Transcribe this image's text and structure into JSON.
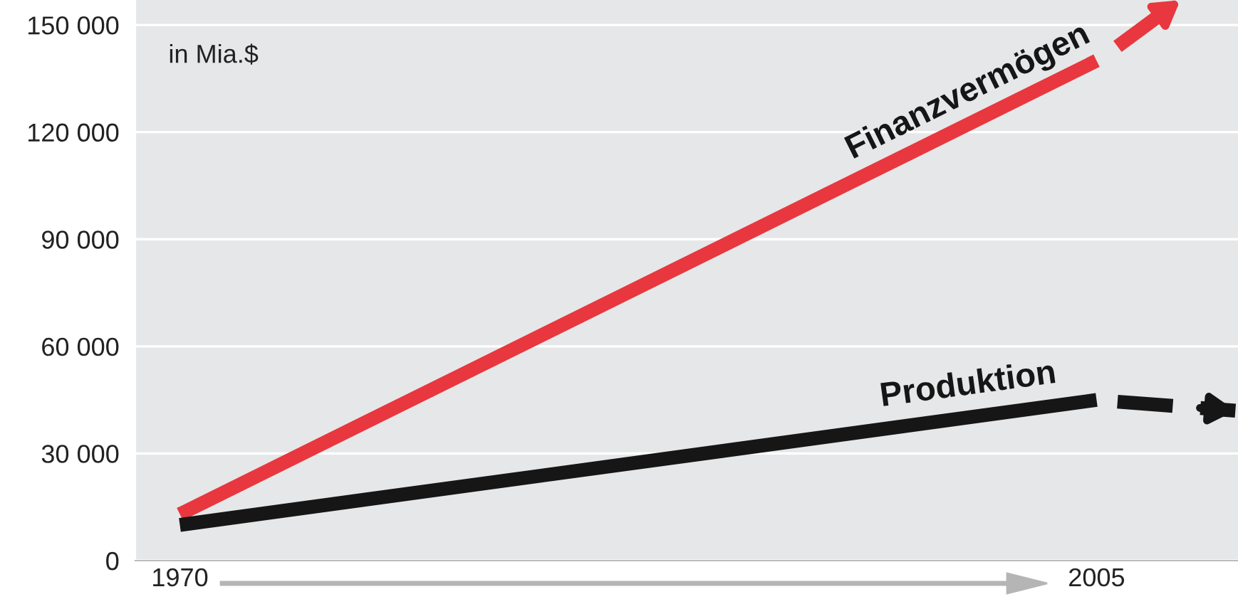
{
  "chart_data": {
    "type": "line",
    "x": [
      1970,
      2005
    ],
    "series": [
      {
        "name": "Finanzvermögen",
        "color": "#e8373e",
        "values": [
          13000,
          140000
        ]
      },
      {
        "name": "Produktion",
        "color": "#161616",
        "values": [
          10000,
          45000
        ]
      },
      {
        "color": "#e8373e",
        "x": [
          2005.8,
          2008.2
        ],
        "values": [
          144000,
          157000
        ],
        "line_style": "dashed"
      },
      {
        "color": "#161616",
        "x": [
          2005.8,
          2010.3
        ],
        "values": [
          44500,
          42000
        ],
        "line_style": "dashed"
      }
    ],
    "xlim": [
      1968.3,
      2010.4
    ],
    "xticks": [
      1970,
      2005
    ],
    "ylim": [
      0,
      157000
    ],
    "yticks": [
      {
        "value": 0,
        "label": "0"
      },
      {
        "value": 30000,
        "label": "30 000"
      },
      {
        "value": 60000,
        "label": "60 000"
      },
      {
        "value": 90000,
        "label": "90 000"
      },
      {
        "value": 120000,
        "label": "120 000"
      },
      {
        "value": 150000,
        "label": "150 000"
      }
    ],
    "grid": "y",
    "marker": "none",
    "line_style": "solid",
    "annotations": [
      "in Mia.$"
    ]
  }
}
